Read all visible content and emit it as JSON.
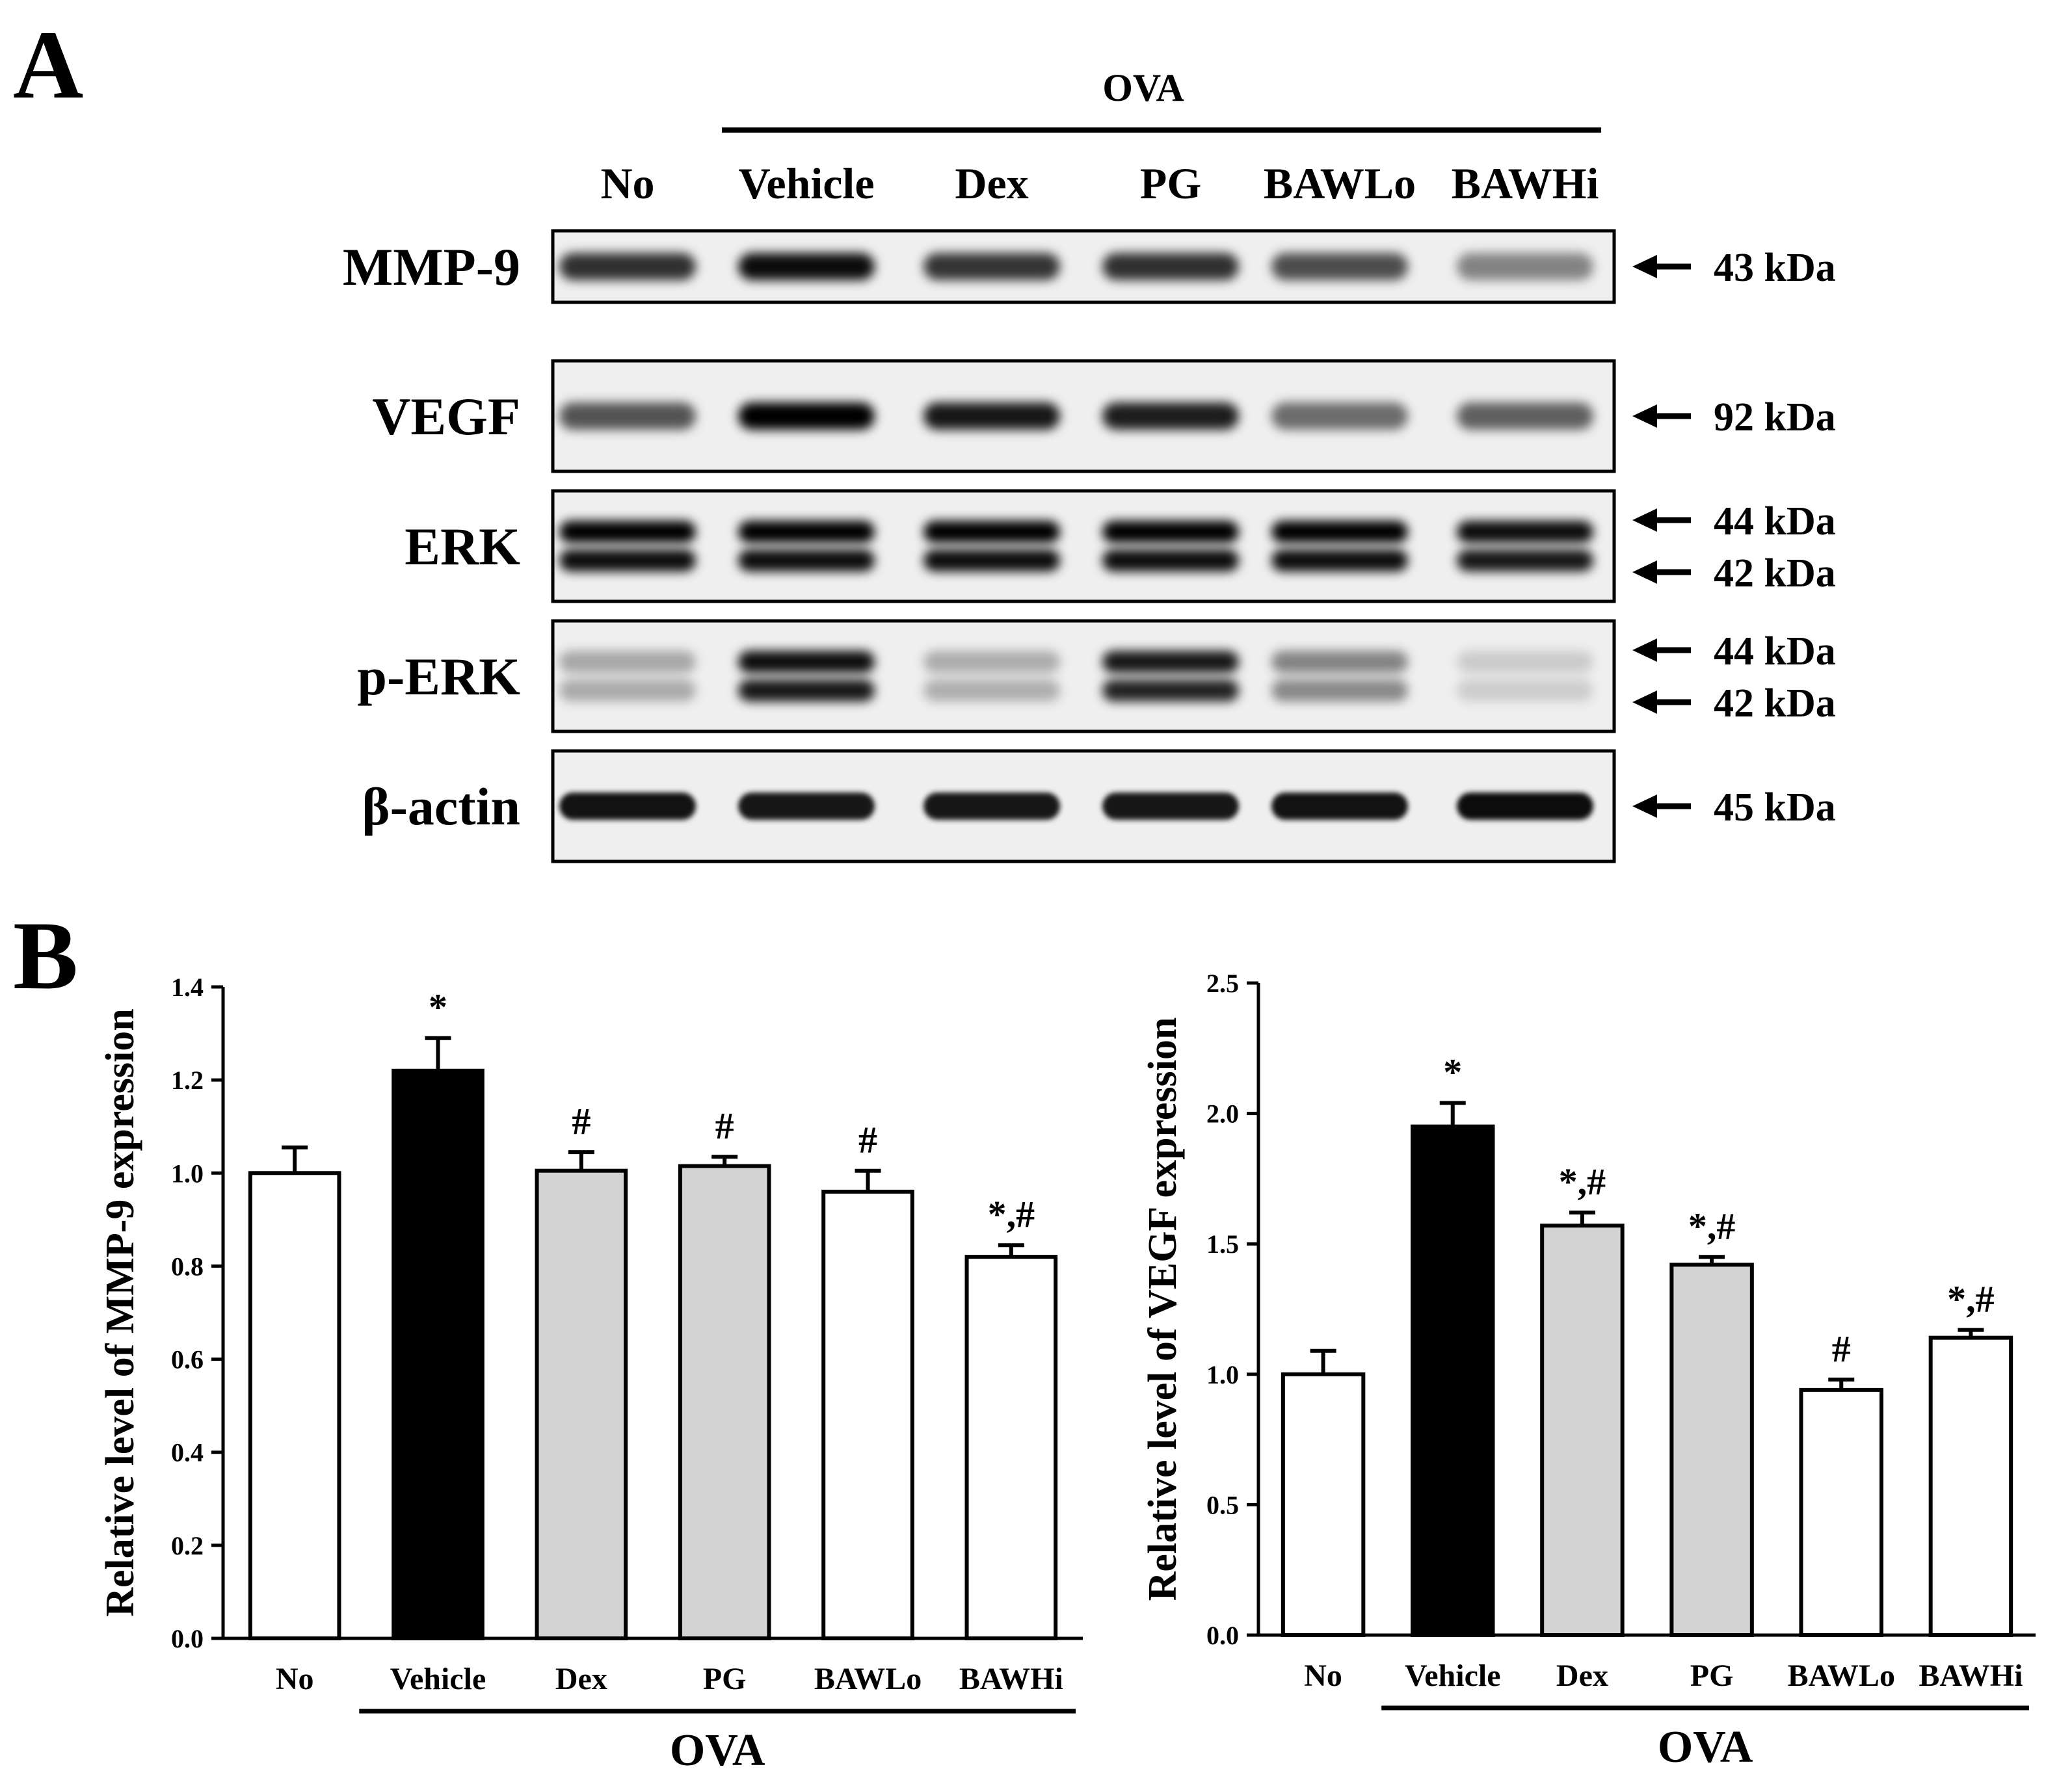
{
  "panel_a": {
    "label": "A",
    "treatment_label": "OVA",
    "lanes": [
      "No",
      "Vehicle",
      "Dex",
      "PG",
      "BAWLo",
      "BAWHi"
    ],
    "blots": [
      {
        "name": "MMP-9",
        "markers": [
          "43 kDa"
        ],
        "double": false,
        "intensity": [
          0.8,
          0.95,
          0.78,
          0.8,
          0.68,
          0.45
        ]
      },
      {
        "name": "VEGF",
        "markers": [
          "92 kDa"
        ],
        "double": false,
        "intensity": [
          0.65,
          1.0,
          0.9,
          0.88,
          0.55,
          0.6
        ]
      },
      {
        "name": "ERK",
        "markers": [
          "44 kDa",
          "42 kDa"
        ],
        "double": true,
        "intensity": [
          1.0,
          1.0,
          1.0,
          1.0,
          1.0,
          0.95
        ]
      },
      {
        "name": "p-ERK",
        "markers": [
          "44 kDa",
          "42 kDa"
        ],
        "double": true,
        "intensity": [
          0.3,
          0.95,
          0.28,
          0.9,
          0.45,
          0.15
        ]
      },
      {
        "name": "β-actin",
        "markers": [
          "45 kDa"
        ],
        "double": false,
        "intensity": [
          0.92,
          0.9,
          0.9,
          0.9,
          0.92,
          0.95
        ]
      }
    ]
  },
  "panel_b": {
    "label": "B",
    "chart_data": [
      {
        "type": "bar",
        "categories": [
          "No",
          "Vehicle",
          "Dex",
          "PG",
          "BAWLo",
          "BAWHi"
        ],
        "values": [
          1.0,
          1.22,
          1.005,
          1.015,
          0.96,
          0.82
        ],
        "errors": [
          0.055,
          0.07,
          0.04,
          0.02,
          0.045,
          0.025
        ],
        "annotations": [
          "",
          "*",
          "#",
          "#",
          "#",
          "*,#"
        ],
        "bar_colors": [
          "#ffffff",
          "#000000",
          "#d3d3d3",
          "#d3d3d3",
          "#ffffff",
          "#ffffff"
        ],
        "ylabel": "Relative level of MMP-9 expression",
        "xlabel": "OVA",
        "ylim": [
          0,
          1.4
        ],
        "yticks": [
          "0.0",
          "0.2",
          "0.4",
          "0.6",
          "0.8",
          "1.0",
          "1.2",
          "1.4"
        ],
        "grid": false
      },
      {
        "type": "bar",
        "categories": [
          "No",
          "Vehicle",
          "Dex",
          "PG",
          "BAWLo",
          "BAWHi"
        ],
        "values": [
          1.0,
          1.95,
          1.57,
          1.42,
          0.94,
          1.14
        ],
        "errors": [
          0.09,
          0.09,
          0.05,
          0.03,
          0.04,
          0.03
        ],
        "annotations": [
          "",
          "*",
          "*,#",
          "*,#",
          "#",
          "*,#"
        ],
        "bar_colors": [
          "#ffffff",
          "#000000",
          "#d3d3d3",
          "#d3d3d3",
          "#ffffff",
          "#ffffff"
        ],
        "ylabel": "Relative level of VEGF expression",
        "xlabel": "OVA",
        "ylim": [
          0,
          2.5
        ],
        "yticks": [
          "0.0",
          "0.5",
          "1.0",
          "1.5",
          "2.0",
          "2.5"
        ],
        "grid": false
      }
    ]
  }
}
